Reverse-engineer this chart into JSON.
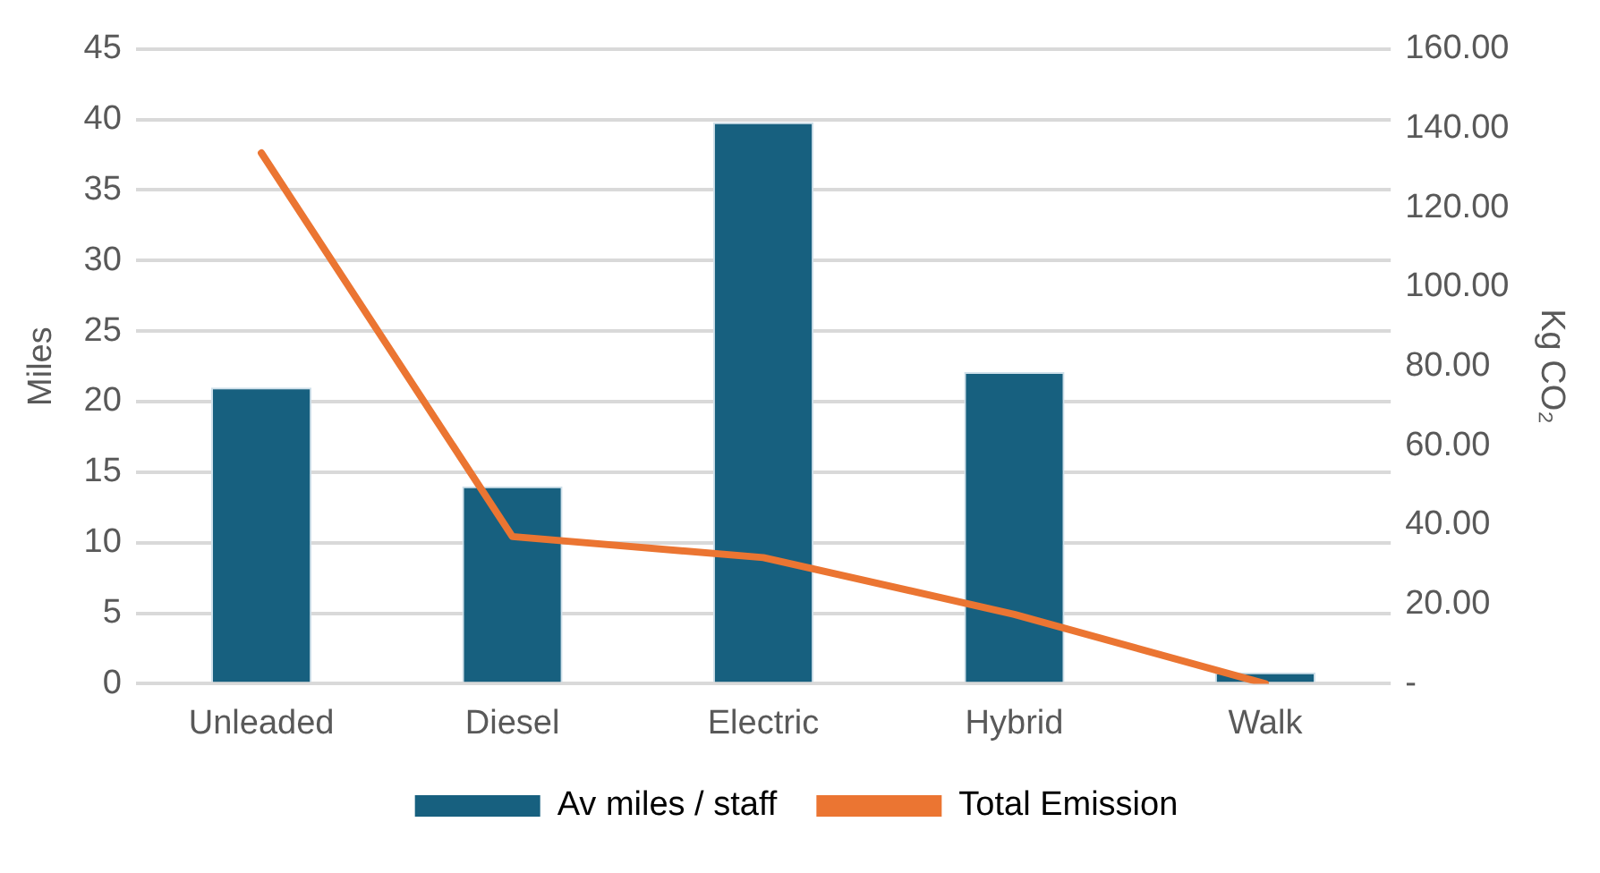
{
  "chart_data": {
    "type": "bar",
    "categories": [
      "Unleaded",
      "Diesel",
      "Electric",
      "Hybrid",
      "Walk"
    ],
    "series": [
      {
        "name": "Av miles / staff",
        "color": "#17607f",
        "values": [
          21.0,
          14.0,
          39.8,
          22.1,
          0.8
        ]
      },
      {
        "name": "Total Emission",
        "type": "line",
        "axis": "y2",
        "color": "#eb7532",
        "values": [
          133.8,
          37.1,
          31.8,
          17.5,
          0
        ]
      }
    ],
    "ylabel": "Miles",
    "y2label": "Kg CO₂",
    "ylim": [
      0,
      45
    ],
    "yticks": [
      0,
      5,
      10,
      15,
      20,
      25,
      30,
      35,
      40,
      45
    ],
    "y2lim": [
      0,
      160
    ],
    "y2ticks": [
      {
        "value": 0,
        "label": "-"
      },
      {
        "value": 20,
        "label": "20.00"
      },
      {
        "value": 40,
        "label": "40.00"
      },
      {
        "value": 60,
        "label": "60.00"
      },
      {
        "value": 80,
        "label": "80.00"
      },
      {
        "value": 100,
        "label": "100.00"
      },
      {
        "value": 120,
        "label": "120.00"
      },
      {
        "value": 140,
        "label": "140.00"
      },
      {
        "value": 160,
        "label": "160.00"
      }
    ],
    "grid": "y",
    "legend": "bottom",
    "marker": "none",
    "line_style": "solid"
  }
}
